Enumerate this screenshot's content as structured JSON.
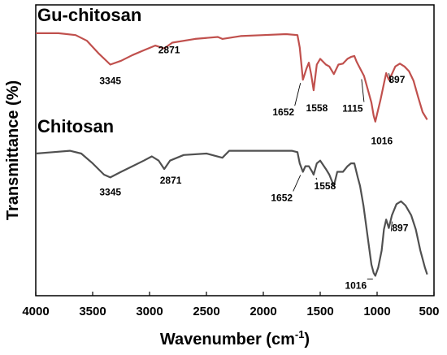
{
  "chart_data": {
    "type": "line",
    "title": "",
    "xlabel": "Wavenumber (cm",
    "xlabel_sup": "-1",
    "xlabel_close": ")",
    "ylabel": "Transmittance (%)",
    "xlim": [
      4000,
      500
    ],
    "x_reversed": true,
    "grid": false,
    "x_ticks": [
      "4000",
      "3500",
      "3000",
      "2500",
      "2000",
      "1500",
      "1000",
      "500"
    ],
    "series": [
      {
        "name": "Gu-chitosan",
        "color": "#c0504d",
        "points": [
          [
            4000,
            0.95
          ],
          [
            3800,
            0.95
          ],
          [
            3650,
            0.93
          ],
          [
            3550,
            0.87
          ],
          [
            3450,
            0.74
          ],
          [
            3345,
            0.62
          ],
          [
            3250,
            0.66
          ],
          [
            3150,
            0.72
          ],
          [
            3050,
            0.77
          ],
          [
            2950,
            0.82
          ],
          [
            2871,
            0.79
          ],
          [
            2800,
            0.85
          ],
          [
            2600,
            0.89
          ],
          [
            2400,
            0.91
          ],
          [
            2360,
            0.89
          ],
          [
            2200,
            0.92
          ],
          [
            2000,
            0.93
          ],
          [
            1800,
            0.94
          ],
          [
            1700,
            0.93
          ],
          [
            1680,
            0.8
          ],
          [
            1652,
            0.46
          ],
          [
            1620,
            0.58
          ],
          [
            1600,
            0.64
          ],
          [
            1580,
            0.52
          ],
          [
            1558,
            0.35
          ],
          [
            1530,
            0.62
          ],
          [
            1500,
            0.68
          ],
          [
            1450,
            0.62
          ],
          [
            1420,
            0.6
          ],
          [
            1380,
            0.52
          ],
          [
            1340,
            0.62
          ],
          [
            1300,
            0.63
          ],
          [
            1260,
            0.68
          ],
          [
            1230,
            0.7
          ],
          [
            1200,
            0.71
          ],
          [
            1180,
            0.65
          ],
          [
            1150,
            0.58
          ],
          [
            1115,
            0.5
          ],
          [
            1080,
            0.35
          ],
          [
            1050,
            0.22
          ],
          [
            1030,
            0.08
          ],
          [
            1016,
            0.02
          ],
          [
            1000,
            0.1
          ],
          [
            970,
            0.25
          ],
          [
            940,
            0.42
          ],
          [
            920,
            0.53
          ],
          [
            897,
            0.46
          ],
          [
            870,
            0.52
          ],
          [
            840,
            0.6
          ],
          [
            800,
            0.63
          ],
          [
            760,
            0.6
          ],
          [
            720,
            0.55
          ],
          [
            680,
            0.45
          ],
          [
            640,
            0.28
          ],
          [
            600,
            0.12
          ],
          [
            560,
            0.04
          ]
        ],
        "peaks": [
          {
            "wavenumber": 3345,
            "label": "3345"
          },
          {
            "wavenumber": 2871,
            "label": "2871"
          },
          {
            "wavenumber": 1652,
            "label": "1652"
          },
          {
            "wavenumber": 1558,
            "label": "1558"
          },
          {
            "wavenumber": 1115,
            "label": "1115"
          },
          {
            "wavenumber": 1016,
            "label": "1016"
          },
          {
            "wavenumber": 897,
            "label": "897"
          }
        ]
      },
      {
        "name": "Chitosan",
        "color": "#505050",
        "points": [
          [
            4000,
            0.89
          ],
          [
            3850,
            0.9
          ],
          [
            3700,
            0.91
          ],
          [
            3600,
            0.89
          ],
          [
            3500,
            0.82
          ],
          [
            3400,
            0.74
          ],
          [
            3345,
            0.72
          ],
          [
            3250,
            0.76
          ],
          [
            3150,
            0.8
          ],
          [
            3050,
            0.84
          ],
          [
            2980,
            0.87
          ],
          [
            2920,
            0.84
          ],
          [
            2871,
            0.78
          ],
          [
            2820,
            0.84
          ],
          [
            2700,
            0.88
          ],
          [
            2500,
            0.89
          ],
          [
            2360,
            0.86
          ],
          [
            2300,
            0.91
          ],
          [
            2100,
            0.91
          ],
          [
            1900,
            0.91
          ],
          [
            1750,
            0.91
          ],
          [
            1700,
            0.9
          ],
          [
            1680,
            0.82
          ],
          [
            1652,
            0.76
          ],
          [
            1630,
            0.8
          ],
          [
            1600,
            0.8
          ],
          [
            1570,
            0.76
          ],
          [
            1558,
            0.74
          ],
          [
            1530,
            0.82
          ],
          [
            1500,
            0.84
          ],
          [
            1450,
            0.78
          ],
          [
            1420,
            0.74
          ],
          [
            1380,
            0.66
          ],
          [
            1350,
            0.76
          ],
          [
            1300,
            0.76
          ],
          [
            1260,
            0.8
          ],
          [
            1230,
            0.82
          ],
          [
            1200,
            0.82
          ],
          [
            1170,
            0.72
          ],
          [
            1150,
            0.66
          ],
          [
            1120,
            0.52
          ],
          [
            1080,
            0.28
          ],
          [
            1050,
            0.1
          ],
          [
            1030,
            0.04
          ],
          [
            1016,
            0.02
          ],
          [
            990,
            0.08
          ],
          [
            960,
            0.2
          ],
          [
            940,
            0.35
          ],
          [
            920,
            0.42
          ],
          [
            897,
            0.36
          ],
          [
            870,
            0.45
          ],
          [
            830,
            0.53
          ],
          [
            790,
            0.55
          ],
          [
            750,
            0.52
          ],
          [
            700,
            0.45
          ],
          [
            660,
            0.35
          ],
          [
            620,
            0.2
          ],
          [
            580,
            0.08
          ],
          [
            560,
            0.03
          ]
        ],
        "peaks": [
          {
            "wavenumber": 3345,
            "label": "3345"
          },
          {
            "wavenumber": 2871,
            "label": "2871"
          },
          {
            "wavenumber": 1652,
            "label": "1652"
          },
          {
            "wavenumber": 1558,
            "label": "1558"
          },
          {
            "wavenumber": 1016,
            "label": "1016"
          },
          {
            "wavenumber": 897,
            "label": "897"
          }
        ]
      }
    ]
  }
}
